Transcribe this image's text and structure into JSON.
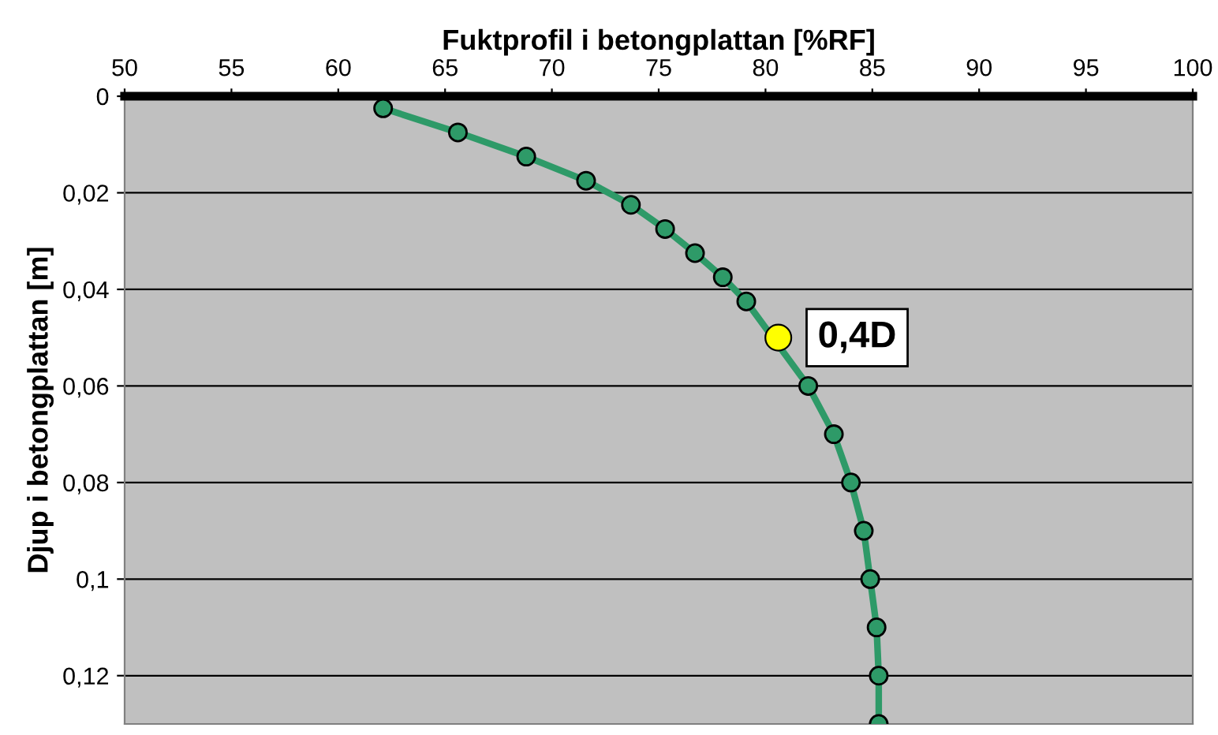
{
  "chart_data": {
    "type": "line",
    "xlabel": "Fuktprofil i betongplattan [%RF]",
    "ylabel": "Djup i betongplattan [m]",
    "series": [
      {
        "color": "#2e9a68",
        "marker": "circle",
        "x": [
          62.1,
          65.6,
          68.8,
          71.6,
          73.7,
          75.3,
          76.7,
          78.0,
          79.1,
          82.0,
          83.2,
          84.0,
          84.6,
          84.9,
          85.2,
          85.3,
          85.3
        ],
        "values": [
          0.0025,
          0.0075,
          0.0125,
          0.0175,
          0.0225,
          0.0275,
          0.0325,
          0.0375,
          0.0425,
          0.06,
          0.07,
          0.08,
          0.09,
          0.1,
          0.11,
          0.12,
          0.13
        ]
      },
      {
        "type": "scatter",
        "color": "#ffff00",
        "marker": "circle",
        "x": [
          80.6
        ],
        "values": [
          0.05
        ]
      }
    ],
    "xlim": [
      50,
      100
    ],
    "xticks": [
      50,
      55,
      60,
      65,
      70,
      75,
      80,
      85,
      90,
      95,
      100
    ],
    "ylim": [
      0.13,
      0
    ],
    "yticks": [
      {
        "value": 0,
        "label": "0"
      },
      {
        "value": 0.02,
        "label": "0,02"
      },
      {
        "value": 0.04,
        "label": "0,04"
      },
      {
        "value": 0.06,
        "label": "0,06"
      },
      {
        "value": 0.08,
        "label": "0,08"
      },
      {
        "value": 0.1,
        "label": "0,1"
      },
      {
        "value": 0.12,
        "label": "0,12"
      }
    ],
    "grid": "y",
    "annotations": [
      {
        "text": "0,4D",
        "x": 80.6,
        "y": 0.05
      }
    ]
  }
}
